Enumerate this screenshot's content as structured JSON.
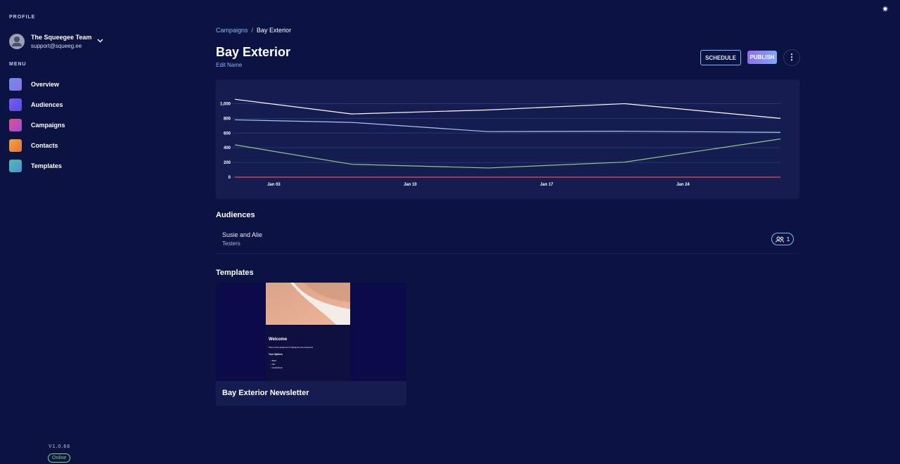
{
  "sidebar": {
    "profile_label": "PROFILE",
    "user_name": "The Squeegee Team",
    "user_email": "support@squeeg.ee",
    "menu_label": "MENU",
    "menu": [
      "Overview",
      "Audiences",
      "Campaigns",
      "Contacts",
      "Templates"
    ],
    "version": "V1.0.68",
    "status": "Online"
  },
  "header": {
    "breadcrumb": [
      "Campaigns",
      "Bay Exterior"
    ],
    "title": "Bay Exterior",
    "edit_name": "Edit Name",
    "buttons": [
      "SCHEDULE",
      "PUBLISH"
    ]
  },
  "chart_data": {
    "type": "line",
    "x": [
      1,
      7,
      14,
      21,
      29
    ],
    "xlim": [
      1,
      29
    ],
    "xticks": [
      {
        "value": 3,
        "label": "Jan 03"
      },
      {
        "value": 10,
        "label": "Jan 10"
      },
      {
        "value": 17,
        "label": "Jan 17"
      },
      {
        "value": 24,
        "label": "Jan 24"
      }
    ],
    "ylim": [
      0,
      1100
    ],
    "yticks": [
      0,
      200,
      400,
      600,
      800,
      {
        "value": 1000,
        "label": "1,000"
      }
    ],
    "grid": true,
    "series": [
      {
        "color": "#ffffff",
        "values": [
          1060,
          860,
          915,
          1000,
          800
        ]
      },
      {
        "color": "#a9c4f5",
        "values": [
          780,
          745,
          620,
          625,
          610
        ]
      },
      {
        "color": "#8fc98a",
        "values": [
          440,
          175,
          125,
          205,
          520
        ]
      },
      {
        "color": "#e5534b",
        "values": [
          0,
          0,
          0,
          0,
          0
        ]
      }
    ]
  },
  "audiences": {
    "title": "Audiences",
    "items": [
      {
        "name": "Susie and Alie",
        "group": "Testers",
        "count": "1"
      }
    ]
  },
  "templates": {
    "title": "Templates",
    "items": [
      {
        "name": "Bay Exterior Newsletter",
        "preview": {
          "heading": "Welcome",
          "body": "This is some sample text to display the text component",
          "options_title": "Your Options",
          "options": [
            "Bold",
            "Ital",
            "Underlined"
          ]
        }
      }
    ]
  }
}
